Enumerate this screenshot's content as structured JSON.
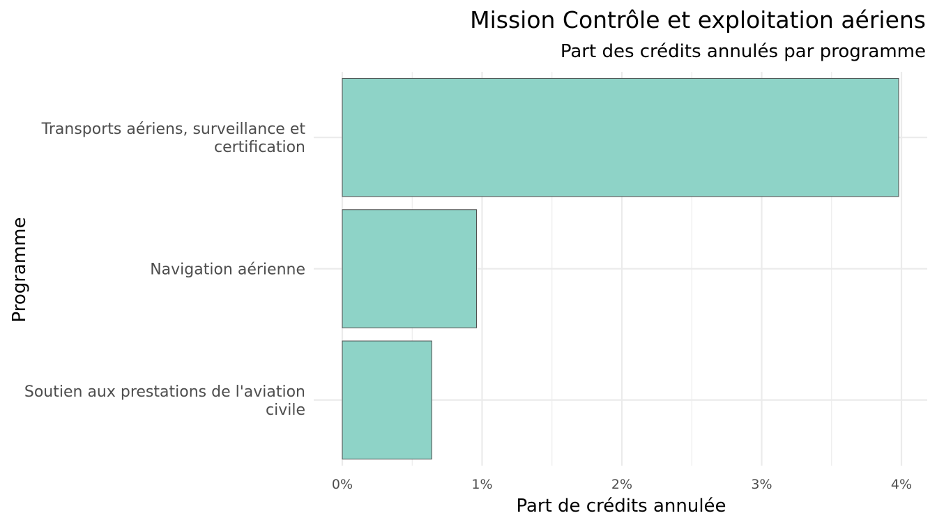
{
  "chart_data": {
    "type": "bar",
    "orientation": "horizontal",
    "title": "Mission Contrôle et exploitation aériens",
    "subtitle": "Part des crédits annulés par programme",
    "xlabel": "Part de crédits annulée",
    "ylabel": "Programme",
    "categories": [
      [
        "Transports aériens, surveillance et",
        "certification"
      ],
      [
        "Navigation aérienne"
      ],
      [
        "Soutien aux prestations de l'aviation",
        "civile"
      ]
    ],
    "values": [
      3.98,
      0.96,
      0.64
    ],
    "xlim": [
      0,
      4.15
    ],
    "x_ticks": [
      0,
      1,
      2,
      3,
      4
    ],
    "x_tick_labels": [
      "0%",
      "1%",
      "2%",
      "3%",
      "4%"
    ],
    "bar_color": "#8ED3C7",
    "grid": true,
    "legend": "none"
  }
}
